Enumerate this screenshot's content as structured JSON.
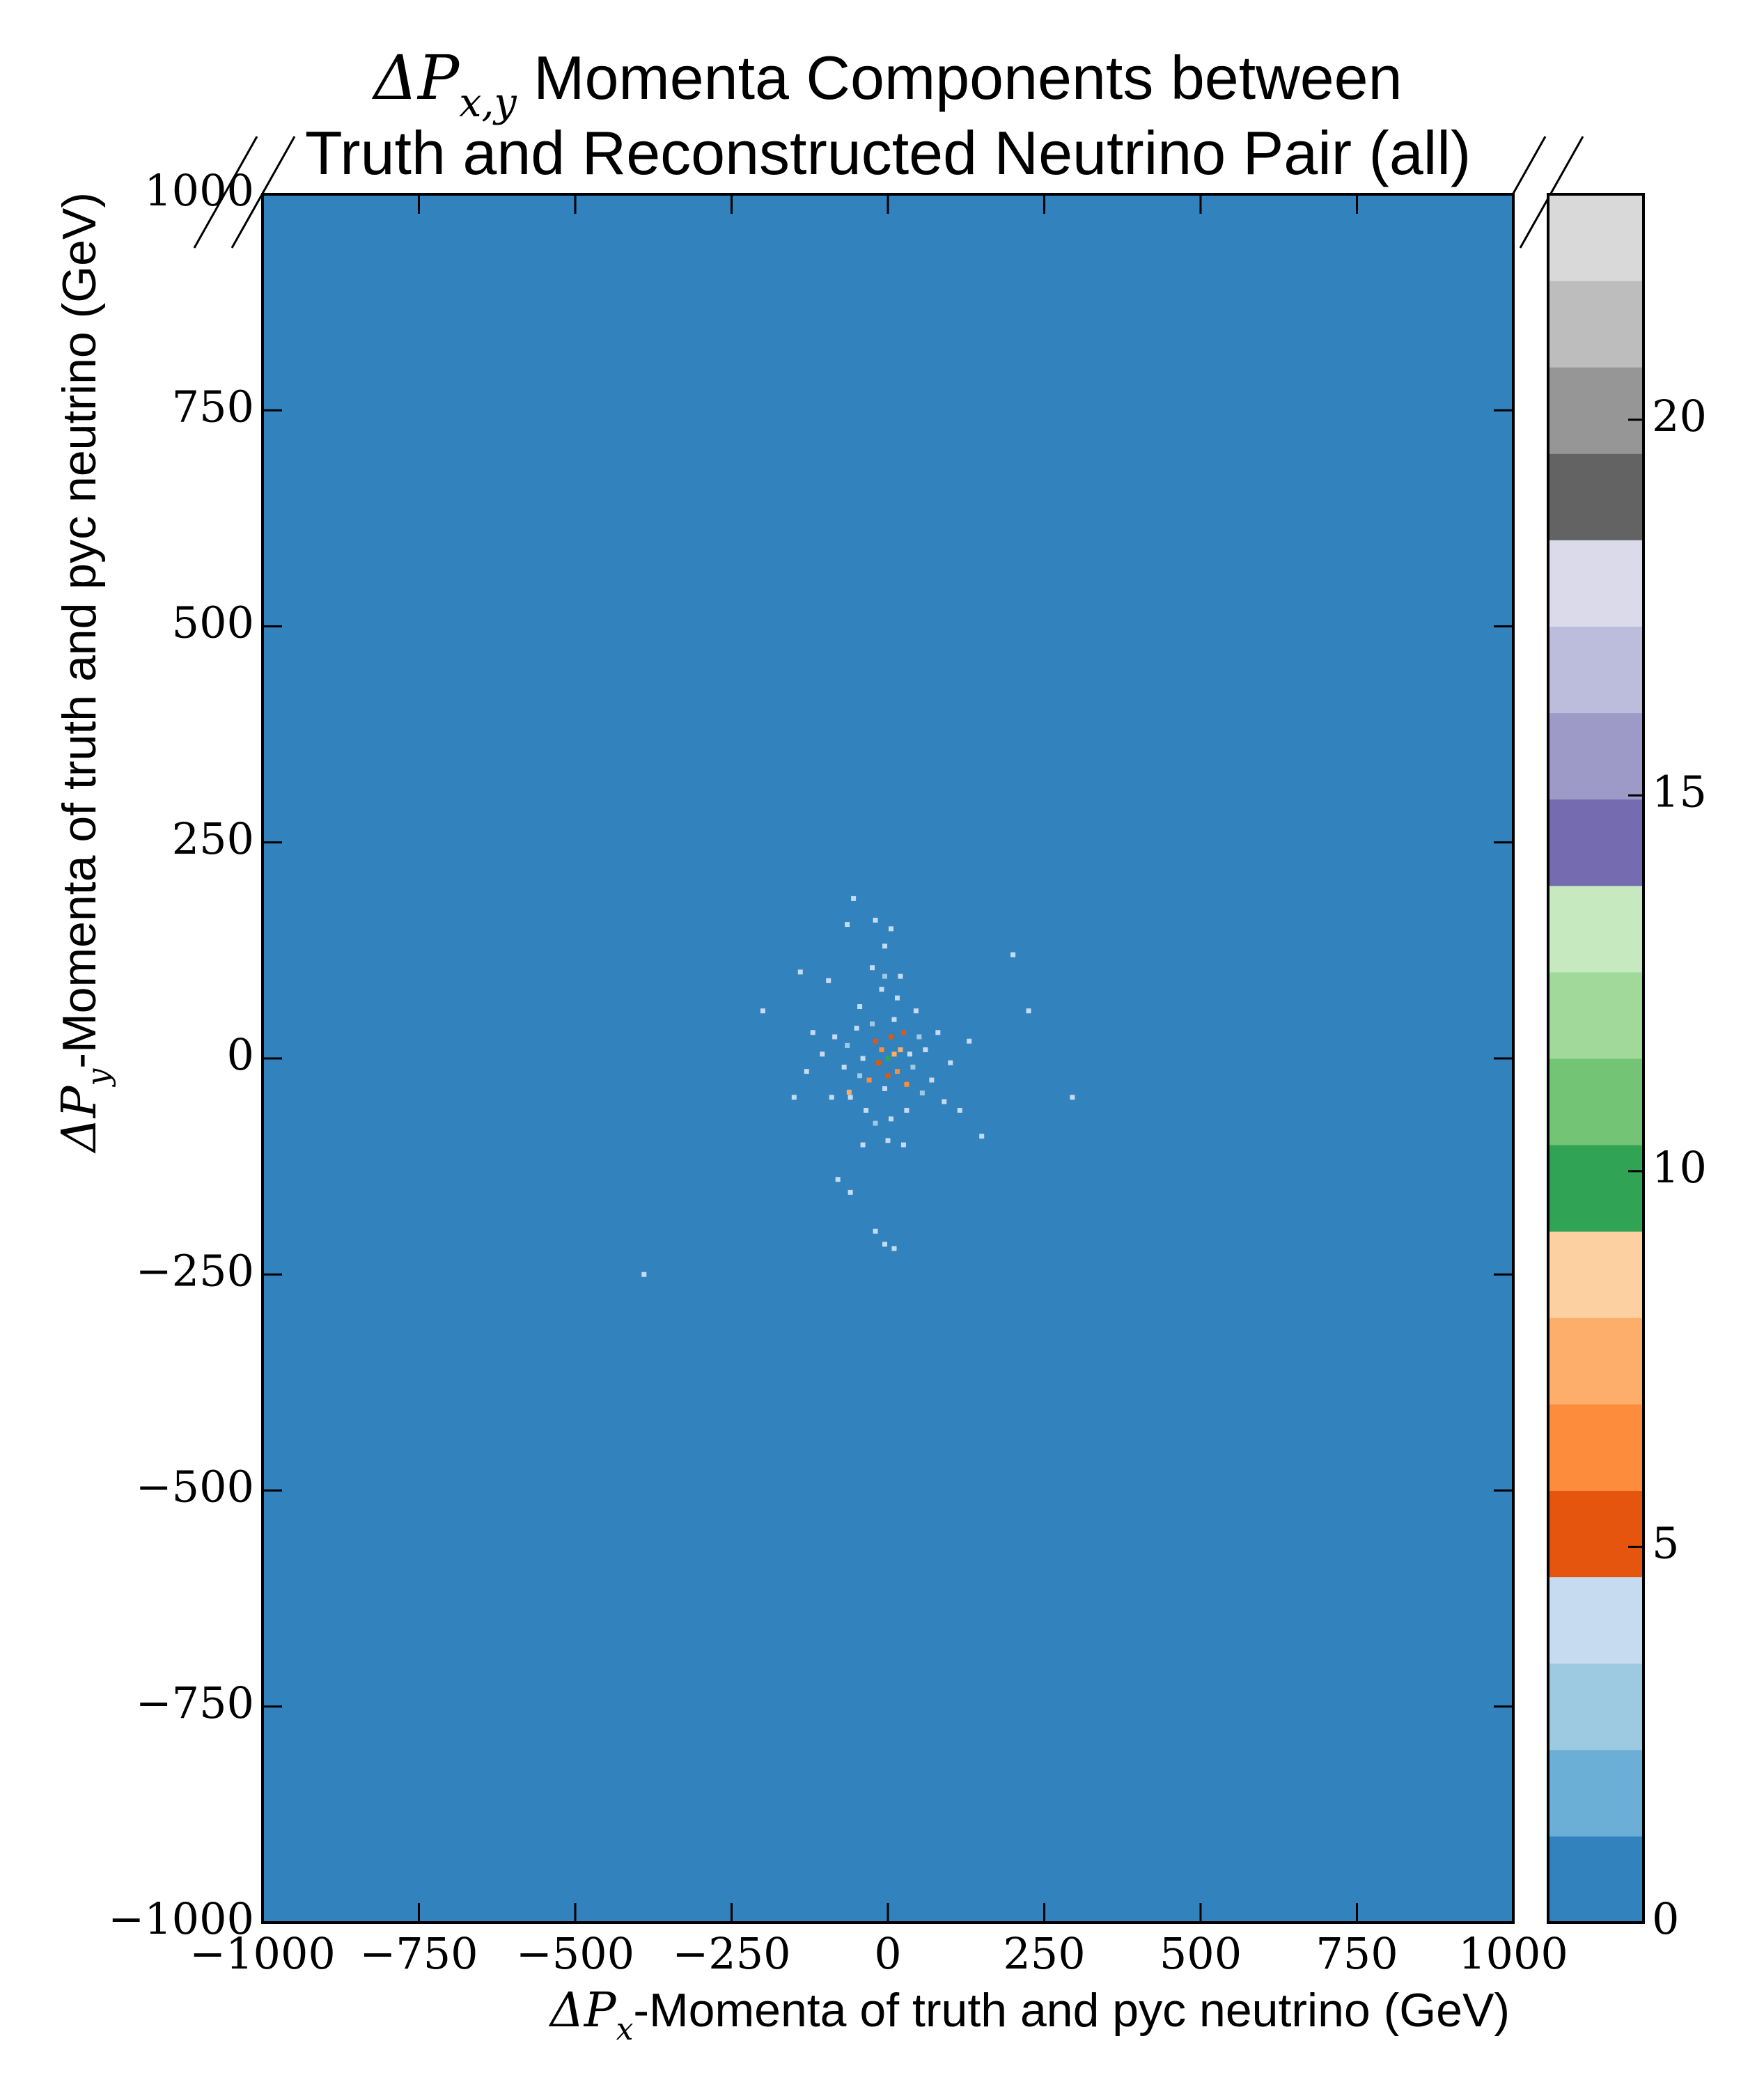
{
  "chart_data": {
    "type": "hist2d",
    "title_lines": [
      [
        "ΔP",
        "x,y",
        " Momenta Components between"
      ],
      [
        "Truth and Reconstructed Neutrino Pair (all)"
      ]
    ],
    "xlabel": [
      "ΔP",
      "x",
      "-Momenta of truth and pyc neutrino (GeV)"
    ],
    "ylabel": [
      "ΔP",
      "y",
      "-Momenta of truth and pyc neutrino (GeV)"
    ],
    "xlim": [
      -1000,
      1000
    ],
    "ylim": [
      -1000,
      1000
    ],
    "xticks": [
      {
        "value": -1000,
        "label": "−1000"
      },
      {
        "value": -750,
        "label": "−750"
      },
      {
        "value": -500,
        "label": "−500"
      },
      {
        "value": -250,
        "label": "−250"
      },
      0,
      250,
      500,
      750,
      1000
    ],
    "yticks": [
      {
        "value": -1000,
        "label": "−1000"
      },
      {
        "value": -750,
        "label": "−750"
      },
      {
        "value": -500,
        "label": "−500"
      },
      {
        "value": -250,
        "label": "−250"
      },
      0,
      250,
      500,
      750,
      1000
    ],
    "x": [
      0,
      10,
      -10,
      15,
      -15,
      5,
      20,
      -20,
      30,
      -30,
      25,
      0,
      -5,
      35,
      -40,
      40,
      -25,
      10,
      -45,
      50,
      -50,
      55,
      -60,
      60,
      -65,
      70,
      -70,
      15,
      -10,
      5,
      -20,
      30,
      -35,
      45,
      -45,
      80,
      -85,
      90,
      -90,
      20,
      -5,
      0,
      25,
      -40,
      100,
      -105,
      -120,
      115,
      -130,
      -150,
      130,
      150,
      -95,
      -140,
      -80,
      -60,
      -5,
      -20,
      10,
      -200,
      -55,
      -20,
      5,
      -5,
      -65,
      225,
      295,
      -390,
      200,
      -62,
      -25
    ],
    "y": [
      0,
      5,
      10,
      -15,
      -5,
      25,
      10,
      20,
      -30,
      -25,
      30,
      -20,
      -35,
      5,
      0,
      -10,
      40,
      45,
      -20,
      25,
      35,
      -40,
      -45,
      10,
      15,
      -25,
      -10,
      70,
      80,
      -70,
      -75,
      -60,
      -60,
      55,
      60,
      30,
      25,
      -50,
      -45,
      95,
      95,
      -95,
      -100,
      -100,
      -5,
      5,
      30,
      -60,
      -15,
      -45,
      20,
      -90,
      90,
      100,
      -140,
      -155,
      -215,
      -200,
      -220,
      55,
      185,
      160,
      150,
      130,
      155,
      55,
      -45,
      -250,
      120,
      -39,
      105
    ],
    "counts": [
      10,
      7,
      6,
      6,
      5,
      5,
      7,
      5,
      6,
      6,
      5,
      5,
      4,
      4,
      4,
      3,
      3,
      4,
      3,
      3,
      4,
      3,
      4,
      4,
      3,
      4,
      4,
      4,
      4,
      4,
      3,
      4,
      4,
      4,
      4,
      4,
      4,
      4,
      4,
      4,
      3,
      4,
      4,
      4,
      4,
      4,
      4,
      4,
      4,
      4,
      4,
      4,
      4,
      4,
      4,
      4,
      4,
      4,
      4,
      4,
      4,
      4,
      4,
      4,
      4,
      4,
      4,
      4,
      4,
      7,
      4
    ],
    "colorbar": {
      "lim": [
        0,
        23
      ],
      "ticks": [
        0,
        5,
        10,
        15,
        20
      ],
      "levels": [
        0,
        1.15,
        2.3,
        3.45,
        4.6,
        5.75,
        6.9,
        8.05,
        9.2,
        10.35,
        11.5,
        12.65,
        13.8,
        14.95,
        16.1,
        17.25,
        18.4,
        19.55,
        20.7,
        21.85,
        23
      ],
      "colors": [
        "#3182bd",
        "#6baed6",
        "#9ecae1",
        "#c6dbef",
        "#e6550d",
        "#fd8d3c",
        "#fdae6b",
        "#fdd0a2",
        "#31a354",
        "#74c476",
        "#a1d99b",
        "#c7e9c0",
        "#756bb1",
        "#9e9ac8",
        "#bcbddc",
        "#dadaeb",
        "#636363",
        "#969696",
        "#bdbdbd",
        "#d9d9d9"
      ]
    }
  }
}
